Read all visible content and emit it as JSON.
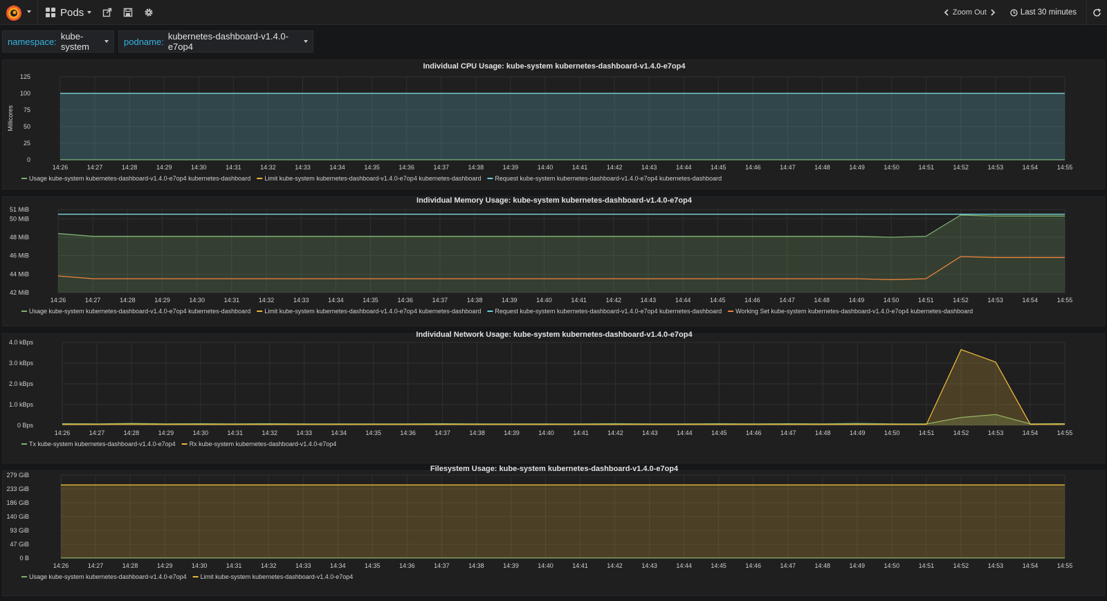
{
  "nav": {
    "dashboard_title": "Pods",
    "zoom_out": "Zoom Out",
    "time_range": "Last 30 minutes"
  },
  "variables": [
    {
      "label": "namespace:",
      "value": "kube-system"
    },
    {
      "label": "podname:",
      "value": "kubernetes-dashboard-v1.4.0-e7op4"
    }
  ],
  "colors": {
    "green": "#7eb26d",
    "yellow": "#eab839",
    "cyan": "#6ed0e0",
    "orange": "#ef843c",
    "fill_green": "#4a5a38",
    "fill_yellow": "#5a4f28"
  },
  "time_ticks": [
    "14:26",
    "14:27",
    "14:28",
    "14:29",
    "14:30",
    "14:31",
    "14:32",
    "14:33",
    "14:34",
    "14:35",
    "14:36",
    "14:37",
    "14:38",
    "14:39",
    "14:40",
    "14:41",
    "14:42",
    "14:43",
    "14:44",
    "14:45",
    "14:46",
    "14:47",
    "14:48",
    "14:49",
    "14:50",
    "14:51",
    "14:52",
    "14:53",
    "14:54",
    "14:55"
  ],
  "chart_data": [
    {
      "type": "area",
      "title": "Individual CPU Usage: kube-system kubernetes-dashboard-v1.4.0-e7op4",
      "ylabel": "Millicores",
      "ylim": [
        0,
        125
      ],
      "yticks": [
        "0",
        "25",
        "50",
        "75",
        "100",
        "125"
      ],
      "ytick_values": [
        0,
        25,
        50,
        75,
        100,
        125
      ],
      "x": [
        0,
        29
      ],
      "series": [
        {
          "name": "Usage kube-system kubernetes-dashboard-v1.4.0-e7op4 kubernetes-dashboard",
          "color": "#7eb26d",
          "values": [
            0,
            0
          ],
          "fill": false
        },
        {
          "name": "Limit kube-system kubernetes-dashboard-v1.4.0-e7op4 kubernetes-dashboard",
          "color": "#eab839",
          "values": [
            100,
            100
          ],
          "fill": false
        },
        {
          "name": "Request kube-system kubernetes-dashboard-v1.4.0-e7op4 kubernetes-dashboard",
          "color": "#6ed0e0",
          "values": [
            100,
            100
          ],
          "fill": true
        }
      ]
    },
    {
      "type": "area",
      "title": "Individual Memory Usage: kube-system kubernetes-dashboard-v1.4.0-e7op4",
      "ylabel": "",
      "ylim": [
        42,
        51
      ],
      "yticks": [
        "42 MiB",
        "44 MiB",
        "46 MiB",
        "48 MiB",
        "50 MiB",
        "51 MiB"
      ],
      "ytick_values": [
        42,
        44,
        46,
        48,
        50,
        51
      ],
      "x": [
        0,
        1,
        2,
        3,
        4,
        5,
        6,
        7,
        8,
        9,
        10,
        11,
        12,
        13,
        14,
        15,
        16,
        17,
        18,
        19,
        20,
        21,
        22,
        23,
        24,
        25,
        26,
        27,
        28,
        29
      ],
      "series": [
        {
          "name": "Usage kube-system kubernetes-dashboard-v1.4.0-e7op4 kubernetes-dashboard",
          "color": "#7eb26d",
          "fill": true,
          "values": [
            48.4,
            48.1,
            48.1,
            48.1,
            48.1,
            48.1,
            48.1,
            48.1,
            48.1,
            48.1,
            48.1,
            48.1,
            48.1,
            48.1,
            48.1,
            48.1,
            48.1,
            48.1,
            48.1,
            48.1,
            48.1,
            48.1,
            48.1,
            48.1,
            48.0,
            48.1,
            50.4,
            50.3,
            50.3,
            50.3
          ]
        },
        {
          "name": "Limit kube-system kubernetes-dashboard-v1.4.0-e7op4 kubernetes-dashboard",
          "color": "#eab839",
          "fill": false,
          "values": [
            50.5,
            50.5,
            50.5,
            50.5,
            50.5,
            50.5,
            50.5,
            50.5,
            50.5,
            50.5,
            50.5,
            50.5,
            50.5,
            50.5,
            50.5,
            50.5,
            50.5,
            50.5,
            50.5,
            50.5,
            50.5,
            50.5,
            50.5,
            50.5,
            50.5,
            50.5,
            50.5,
            50.5,
            50.5,
            50.5
          ]
        },
        {
          "name": "Request kube-system kubernetes-dashboard-v1.4.0-e7op4 kubernetes-dashboard",
          "color": "#6ed0e0",
          "fill": false,
          "values": [
            50.5,
            50.5,
            50.5,
            50.5,
            50.5,
            50.5,
            50.5,
            50.5,
            50.5,
            50.5,
            50.5,
            50.5,
            50.5,
            50.5,
            50.5,
            50.5,
            50.5,
            50.5,
            50.5,
            50.5,
            50.5,
            50.5,
            50.5,
            50.5,
            50.5,
            50.5,
            50.5,
            50.5,
            50.5,
            50.5
          ]
        },
        {
          "name": "Working Set kube-system kubernetes-dashboard-v1.4.0-e7op4 kubernetes-dashboard",
          "color": "#ef843c",
          "fill": false,
          "values": [
            43.8,
            43.5,
            43.5,
            43.5,
            43.5,
            43.5,
            43.5,
            43.5,
            43.5,
            43.5,
            43.5,
            43.5,
            43.5,
            43.5,
            43.5,
            43.5,
            43.5,
            43.5,
            43.5,
            43.5,
            43.5,
            43.5,
            43.5,
            43.5,
            43.4,
            43.5,
            45.9,
            45.8,
            45.8,
            45.8
          ]
        }
      ]
    },
    {
      "type": "area",
      "title": "Individual Network Usage: kube-system kubernetes-dashboard-v1.4.0-e7op4",
      "ylabel": "",
      "ylim": [
        0,
        4.0
      ],
      "yticks": [
        "0 Bps",
        "1.0 kBps",
        "2.0 kBps",
        "3.0 kBps",
        "4.0 kBps"
      ],
      "ytick_values": [
        0,
        1,
        2,
        3,
        4
      ],
      "x": [
        0,
        1,
        2,
        3,
        4,
        5,
        6,
        7,
        8,
        9,
        10,
        11,
        12,
        13,
        14,
        15,
        16,
        17,
        18,
        19,
        20,
        21,
        22,
        23,
        24,
        25,
        26,
        27,
        28,
        29
      ],
      "series": [
        {
          "name": "Tx kube-system kubernetes-dashboard-v1.4.0-e7op4",
          "color": "#7eb26d",
          "fill": true,
          "values": [
            0.08,
            0.07,
            0.09,
            0.07,
            0.08,
            0.07,
            0.08,
            0.07,
            0.07,
            0.07,
            0.07,
            0.08,
            0.07,
            0.07,
            0.07,
            0.07,
            0.08,
            0.07,
            0.07,
            0.08,
            0.07,
            0.08,
            0.07,
            0.09,
            0.07,
            0.07,
            0.38,
            0.52,
            0.07,
            0.08
          ]
        },
        {
          "name": "Rx kube-system kubernetes-dashboard-v1.4.0-e7op4",
          "color": "#eab839",
          "fill": true,
          "values": [
            0.05,
            0.05,
            0.06,
            0.05,
            0.05,
            0.05,
            0.05,
            0.05,
            0.05,
            0.05,
            0.05,
            0.05,
            0.05,
            0.05,
            0.05,
            0.05,
            0.05,
            0.05,
            0.05,
            0.05,
            0.05,
            0.05,
            0.05,
            0.05,
            0.05,
            0.05,
            3.65,
            3.05,
            0.05,
            0.06
          ]
        }
      ]
    },
    {
      "type": "area",
      "title": "Filesystem Usage: kube-system kubernetes-dashboard-v1.4.0-e7op4",
      "ylabel": "",
      "ylim": [
        0,
        279
      ],
      "yticks": [
        "0 B",
        "47 GiB",
        "93 GiB",
        "140 GiB",
        "186 GiB",
        "233 GiB",
        "279 GiB"
      ],
      "ytick_values": [
        0,
        46.5,
        93,
        139.5,
        186,
        232.5,
        279
      ],
      "x": [
        0,
        29
      ],
      "series": [
        {
          "name": "Usage kube-system kubernetes-dashboard-v1.4.0-e7op4",
          "color": "#7eb26d",
          "values": [
            0.5,
            0.5
          ],
          "fill": false
        },
        {
          "name": "Limit kube-system kubernetes-dashboard-v1.4.0-e7op4",
          "color": "#eab839",
          "values": [
            246,
            246
          ],
          "fill": true
        }
      ]
    }
  ]
}
